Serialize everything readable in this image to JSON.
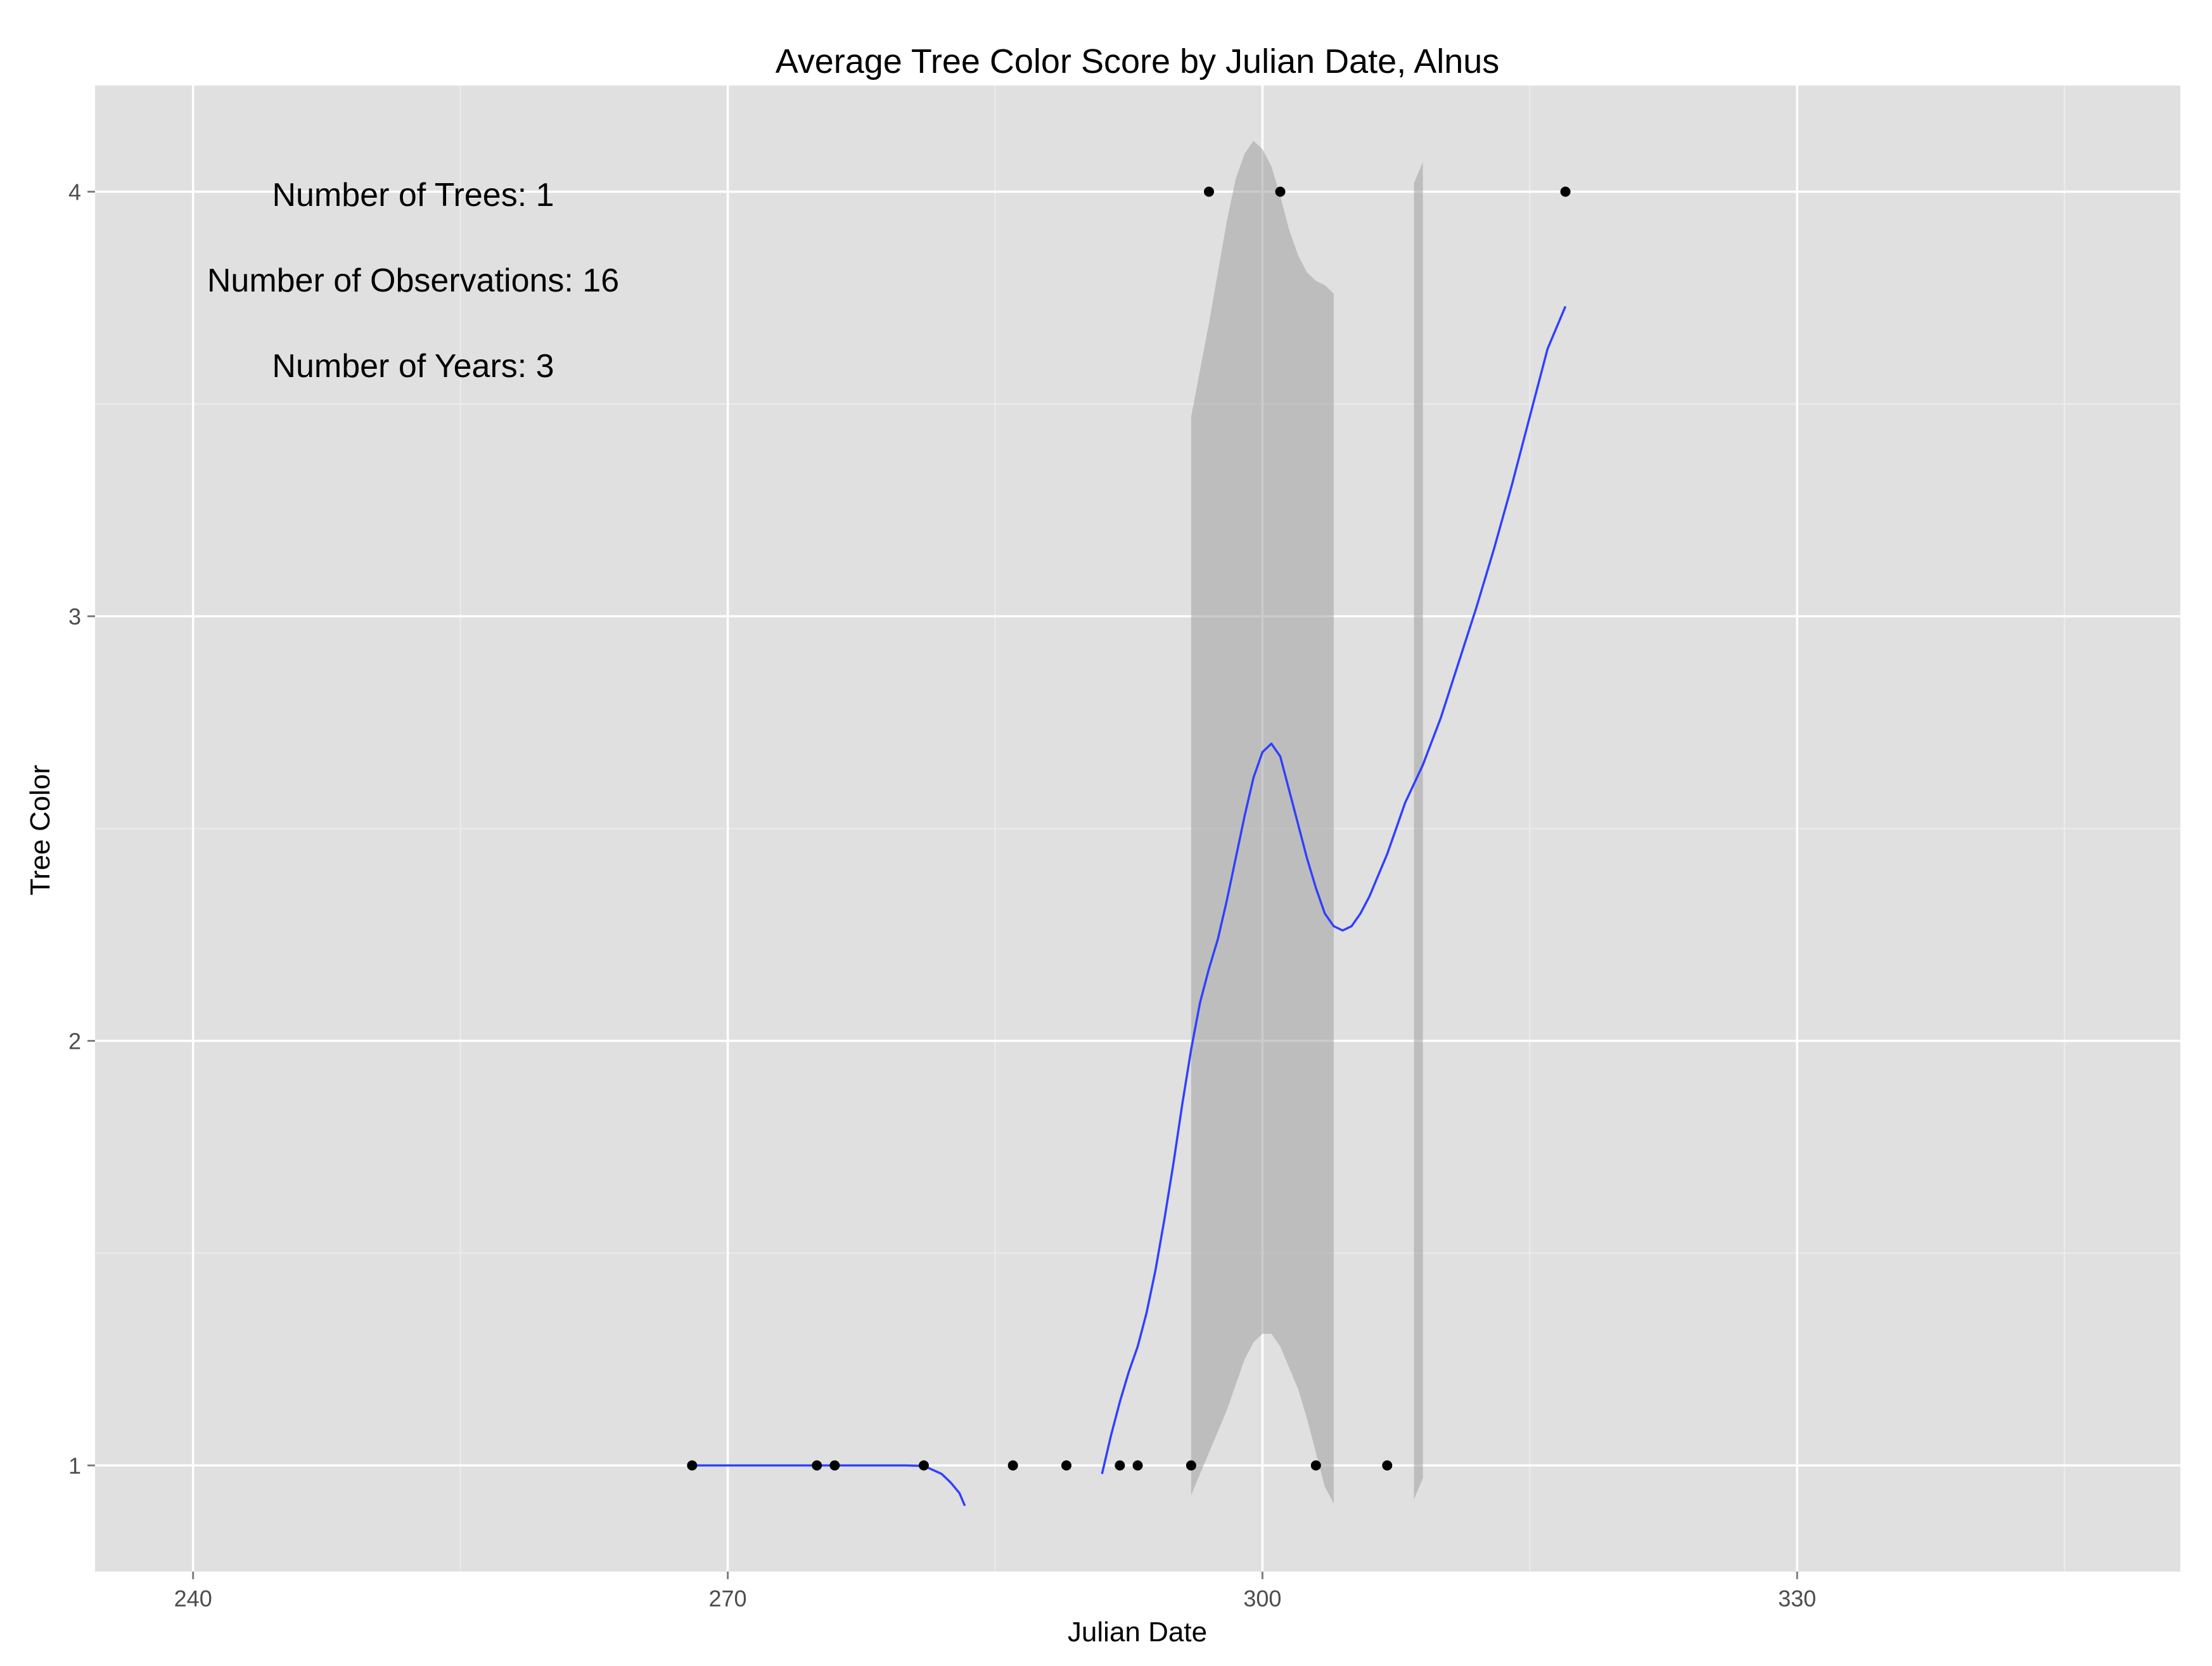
{
  "chart_data": {
    "type": "scatter",
    "title": "Average Tree Color Score by Julian Date, Alnus",
    "xlabel": "Julian Date",
    "ylabel": "Tree Color",
    "xlim": [
      234.5,
      351.5
    ],
    "ylim": [
      0.75,
      4.25
    ],
    "x_ticks": [
      240,
      270,
      300,
      330
    ],
    "x_tick_labels": [
      "240",
      "270",
      "300",
      "330"
    ],
    "y_ticks": [
      1,
      2,
      3,
      4
    ],
    "y_tick_labels": [
      "1",
      "2",
      "3",
      "4"
    ],
    "grid": true,
    "annotations": [
      "Number of Trees: 1",
      "Number of Observations: 16",
      "Number of Years: 3"
    ],
    "points": [
      {
        "x": 268,
        "y": 1
      },
      {
        "x": 275,
        "y": 1
      },
      {
        "x": 276,
        "y": 1
      },
      {
        "x": 281,
        "y": 1
      },
      {
        "x": 286,
        "y": 1
      },
      {
        "x": 289,
        "y": 1
      },
      {
        "x": 292,
        "y": 1
      },
      {
        "x": 293,
        "y": 1
      },
      {
        "x": 296,
        "y": 1
      },
      {
        "x": 303,
        "y": 1
      },
      {
        "x": 307,
        "y": 1
      },
      {
        "x": 297,
        "y": 4
      },
      {
        "x": 301,
        "y": 4
      },
      {
        "x": 317,
        "y": 4
      }
    ],
    "smooth_segments": [
      [
        [
          268,
          1.0
        ],
        [
          272,
          1.0
        ],
        [
          276,
          1.0
        ],
        [
          280,
          1.0
        ],
        [
          281,
          0.999
        ],
        [
          282,
          0.98
        ],
        [
          282.5,
          0.96
        ],
        [
          283,
          0.935
        ],
        [
          283.3,
          0.905
        ]
      ],
      [
        [
          291,
          0.98
        ],
        [
          291.5,
          1.07
        ],
        [
          292,
          1.15
        ],
        [
          292.5,
          1.22
        ],
        [
          293,
          1.28
        ],
        [
          293.5,
          1.36
        ],
        [
          294,
          1.46
        ],
        [
          294.5,
          1.58
        ],
        [
          295,
          1.71
        ],
        [
          295.5,
          1.85
        ],
        [
          296,
          1.98
        ],
        [
          296.5,
          2.09
        ],
        [
          297,
          2.17
        ],
        [
          297.5,
          2.24
        ],
        [
          298,
          2.33
        ],
        [
          298.5,
          2.43
        ],
        [
          299,
          2.53
        ],
        [
          299.5,
          2.62
        ],
        [
          300,
          2.68
        ],
        [
          300.5,
          2.7
        ],
        [
          301,
          2.67
        ],
        [
          301.5,
          2.59
        ],
        [
          302,
          2.51
        ],
        [
          302.5,
          2.43
        ],
        [
          303,
          2.36
        ],
        [
          303.5,
          2.3
        ],
        [
          304,
          2.27
        ],
        [
          304.5,
          2.26
        ],
        [
          305,
          2.27
        ],
        [
          305.5,
          2.3
        ],
        [
          306,
          2.34
        ],
        [
          306.5,
          2.39
        ],
        [
          307,
          2.44
        ],
        [
          307.5,
          2.5
        ],
        [
          308,
          2.56
        ],
        [
          309,
          2.65
        ],
        [
          310,
          2.76
        ],
        [
          311,
          2.89
        ],
        [
          312,
          3.02
        ],
        [
          313,
          3.16
        ],
        [
          314,
          3.31
        ],
        [
          315,
          3.47
        ],
        [
          316,
          3.63
        ],
        [
          317,
          3.73
        ]
      ]
    ],
    "confidence_bands": [
      {
        "x": [
          296,
          296.5,
          297,
          297.5,
          298,
          298.5,
          299,
          299.5,
          300,
          300.5,
          301,
          301.5,
          302,
          302.5,
          303,
          303.5,
          304
        ],
        "upper": [
          3.47,
          3.58,
          3.69,
          3.81,
          3.93,
          4.03,
          4.09,
          4.12,
          4.1,
          4.06,
          3.99,
          3.91,
          3.85,
          3.81,
          3.79,
          3.78,
          3.76
        ],
        "lower": [
          0.93,
          0.98,
          1.03,
          1.08,
          1.13,
          1.19,
          1.25,
          1.29,
          1.31,
          1.31,
          1.28,
          1.23,
          1.18,
          1.11,
          1.03,
          0.95,
          0.91
        ]
      },
      {
        "x": [
          308.5,
          309.0
        ],
        "upper": [
          4.02,
          4.07
        ],
        "lower": [
          0.92,
          0.97
        ]
      }
    ],
    "colors": {
      "panel": "#e0e0e0",
      "grid_major": "#ffffff",
      "grid_minor": "#ececec",
      "point": "#000000",
      "line": "#3040ff",
      "band": "#a0a0a0"
    }
  }
}
